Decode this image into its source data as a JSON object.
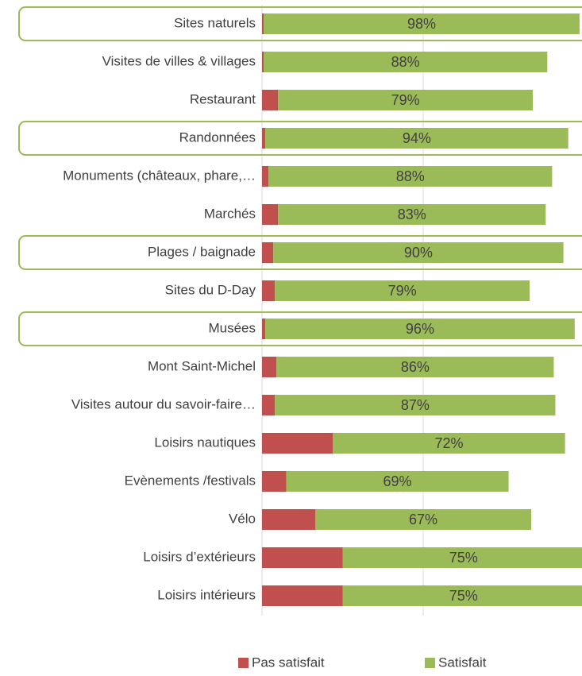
{
  "chart_data": {
    "type": "stacked_bar_horizontal",
    "categories": [
      "Sites naturels",
      "Visites de villes & villages",
      "Restaurant",
      "Randonnées",
      "Monuments (châteaux, phare,…",
      "Marchés",
      "Plages / baignade",
      "Sites du D-Day",
      "Musées",
      "Mont Saint-Michel",
      "Visites autour du savoir-faire…",
      "Loisirs nautiques",
      "Evènements /festivals",
      "Vélo",
      "Loisirs d’extérieurs",
      "Loisirs intérieurs"
    ],
    "series": [
      {
        "name": "Pas satisfait",
        "color": "#c0504d",
        "values": [
          0.5,
          0.5,
          5,
          1,
          2,
          5,
          3.5,
          4,
          1,
          4.5,
          4,
          22,
          7.5,
          16.5,
          25,
          25
        ]
      },
      {
        "name": "Satisfait",
        "color": "#9bbb59",
        "values": [
          98,
          88,
          79,
          94,
          88,
          83,
          90,
          79,
          96,
          86,
          87,
          72,
          69,
          67,
          75,
          75
        ],
        "value_labels": [
          "98%",
          "88%",
          "79%",
          "94%",
          "88%",
          "83%",
          "90%",
          "79%",
          "96%",
          "86%",
          "87%",
          "72%",
          "69%",
          "67%",
          "75%",
          "75%"
        ]
      }
    ],
    "xlim": [
      0,
      100
    ],
    "xticks": [
      0,
      50,
      100
    ],
    "grid": true,
    "highlight_rows": [
      0,
      3,
      6,
      8
    ],
    "highlight_color": "#9bbb59",
    "legend": "bottom"
  }
}
